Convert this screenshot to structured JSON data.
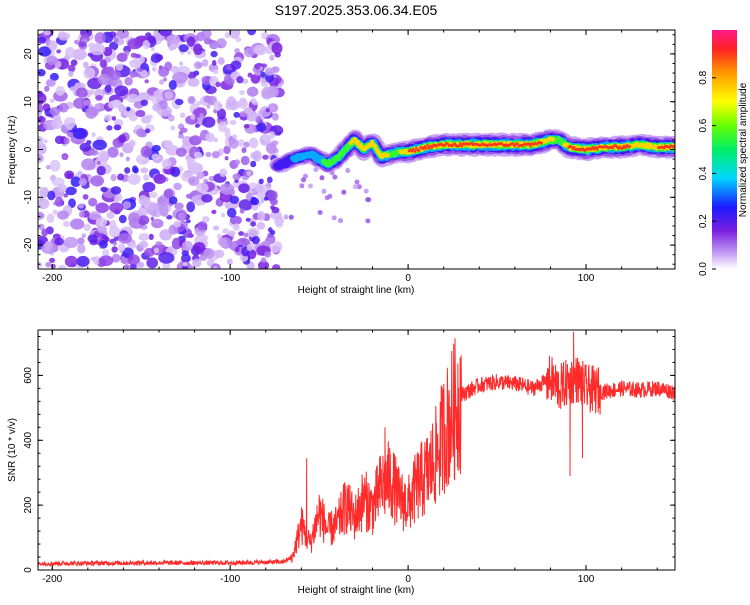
{
  "title": "S197.2025.353.06.34.E05",
  "top_panel": {
    "xlabel": "Height of straight line (km)",
    "ylabel": "Frequency (Hz)",
    "xticks": [
      "-200",
      "-100",
      "0",
      "100"
    ],
    "yticks": [
      "20",
      "10",
      "0",
      "-10",
      "-20"
    ],
    "colorbar_label": "Normalized spectral amplitude",
    "colorbar_ticks": [
      "0.0",
      "0.2",
      "0.4",
      "0.6",
      "0.8"
    ]
  },
  "bottom_panel": {
    "xlabel": "Height of straight line (km)",
    "ylabel": "SNR (10 * v/v)",
    "xticks": [
      "-200",
      "-100",
      "0",
      "100"
    ],
    "yticks": [
      "0",
      "200",
      "400",
      "600"
    ]
  },
  "colors": {
    "snr_line": "#ff2a2a",
    "axes": "#000000",
    "noise": "#9b59e6"
  },
  "chart_data": [
    {
      "type": "heatmap",
      "title": "S197.2025.353.06.34.E05",
      "xlabel": "Height of straight line (km)",
      "ylabel": "Frequency (Hz)",
      "xlim": [
        -208,
        150
      ],
      "ylim": [
        -25,
        25
      ],
      "colorbar": {
        "label": "Normalized spectral amplitude",
        "range": [
          0,
          1
        ]
      },
      "noise_region_x": [
        -208,
        -72
      ],
      "ridge": {
        "x": [
          -73,
          -65,
          -55,
          -45,
          -40,
          -35,
          -30,
          -25,
          -20,
          -15,
          -10,
          -5,
          0,
          10,
          20,
          30,
          40,
          50,
          60,
          70,
          80,
          85,
          90,
          100,
          110,
          120,
          130,
          140,
          150
        ],
        "freq_hz": [
          -3.5,
          -2,
          -1,
          -3,
          -2,
          0,
          2,
          0,
          1.5,
          -1.5,
          -1,
          -0.5,
          -0.5,
          0.5,
          1,
          1,
          1,
          1,
          1,
          1,
          2,
          2,
          0.5,
          0,
          0.5,
          0.5,
          1,
          0.5,
          0.5
        ],
        "amplitude": [
          0.3,
          0.35,
          0.4,
          0.6,
          0.55,
          0.7,
          0.8,
          0.85,
          0.75,
          0.9,
          0.7,
          0.75,
          0.9,
          0.95,
          0.95,
          1.0,
          1.0,
          1.0,
          1.0,
          0.95,
          0.85,
          0.6,
          0.9,
          0.95,
          0.9,
          0.95,
          0.85,
          0.9,
          0.95
        ]
      }
    },
    {
      "type": "line",
      "xlabel": "Height of straight line (km)",
      "ylabel": "SNR (10 * v/v)",
      "xlim": [
        -208,
        150
      ],
      "ylim": [
        0,
        740
      ],
      "series": [
        {
          "name": "SNR",
          "x": [
            -208,
            -150,
            -100,
            -80,
            -70,
            -65,
            -60,
            -55,
            -50,
            -45,
            -40,
            -35,
            -30,
            -25,
            -20,
            -15,
            -10,
            -5,
            0,
            5,
            10,
            15,
            20,
            25,
            30,
            40,
            50,
            60,
            70,
            80,
            85,
            90,
            95,
            100,
            110,
            120,
            130,
            140,
            150
          ],
          "values": [
            20,
            22,
            22,
            24,
            25,
            40,
            140,
            80,
            180,
            120,
            140,
            200,
            160,
            220,
            190,
            260,
            280,
            220,
            200,
            260,
            290,
            340,
            420,
            480,
            540,
            570,
            580,
            575,
            560,
            590,
            560,
            580,
            590,
            560,
            550,
            560,
            555,
            560,
            550
          ],
          "peaks": [
            {
              "x": -57,
              "y": 345
            },
            {
              "x": -34,
              "y": 250
            },
            {
              "x": -13,
              "y": 440
            },
            {
              "x": 93,
              "y": 735
            },
            {
              "x": 91,
              "y": 290
            },
            {
              "x": 98,
              "y": 345
            }
          ]
        }
      ]
    }
  ]
}
